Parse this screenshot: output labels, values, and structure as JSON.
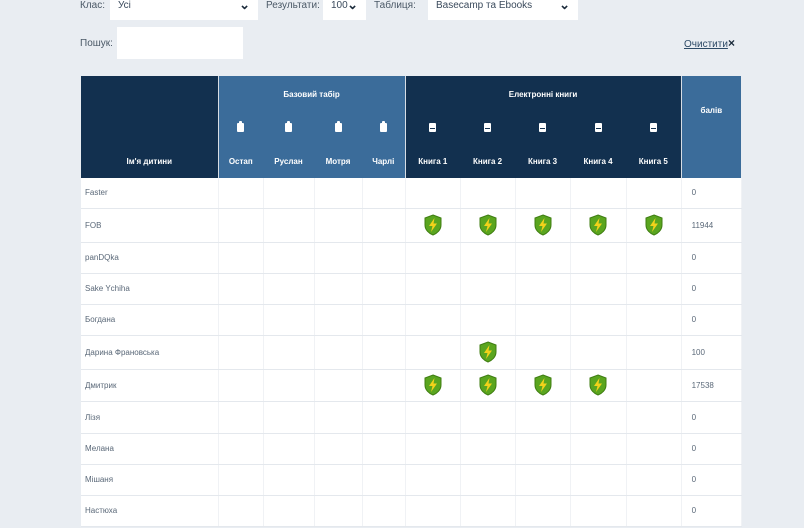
{
  "filters": {
    "class_label": "Клас:",
    "class_value": "Усі",
    "results_label": "Результати:",
    "results_value": "100",
    "table_label": "Таблиця:",
    "table_value": "Basecamp та Ebooks"
  },
  "search": {
    "label": "Пошук:",
    "value": "",
    "placeholder": "",
    "clear_label": "Очистити",
    "clear_icon": "×"
  },
  "table": {
    "group_basecamp": "Базовий табір",
    "group_ebooks": "Електронні книги",
    "score_header": "балів",
    "name_header": "Ім'я дитини",
    "basecamp_cols": [
      "Остап",
      "Руслан",
      "Мотря",
      "Чарлі"
    ],
    "ebook_cols": [
      "Книга 1",
      "Книга 2",
      "Книга 3",
      "Книга 4",
      "Книга 5"
    ],
    "badge_icon": "lightning-shield-icon",
    "badge_colors": {
      "shield": "#5aa51f",
      "bolt": "#f2d21a"
    },
    "rows": [
      {
        "name": "Faster",
        "basecamp": [
          0,
          0,
          0,
          0
        ],
        "ebooks": [
          0,
          0,
          0,
          0,
          0
        ],
        "score": "0"
      },
      {
        "name": "FOB",
        "basecamp": [
          0,
          0,
          0,
          0
        ],
        "ebooks": [
          1,
          1,
          1,
          1,
          1
        ],
        "score": "11944"
      },
      {
        "name": "panDQka",
        "basecamp": [
          0,
          0,
          0,
          0
        ],
        "ebooks": [
          0,
          0,
          0,
          0,
          0
        ],
        "score": "0"
      },
      {
        "name": "Sake Ychiha",
        "basecamp": [
          0,
          0,
          0,
          0
        ],
        "ebooks": [
          0,
          0,
          0,
          0,
          0
        ],
        "score": "0"
      },
      {
        "name": "Богдана",
        "basecamp": [
          0,
          0,
          0,
          0
        ],
        "ebooks": [
          0,
          0,
          0,
          0,
          0
        ],
        "score": "0"
      },
      {
        "name": "Дарина Франовська",
        "basecamp": [
          0,
          0,
          0,
          0
        ],
        "ebooks": [
          0,
          1,
          0,
          0,
          0
        ],
        "score": "100"
      },
      {
        "name": "Дмитрик",
        "basecamp": [
          0,
          0,
          0,
          0
        ],
        "ebooks": [
          1,
          1,
          1,
          1,
          0
        ],
        "score": "17538"
      },
      {
        "name": "Лізя",
        "basecamp": [
          0,
          0,
          0,
          0
        ],
        "ebooks": [
          0,
          0,
          0,
          0,
          0
        ],
        "score": "0"
      },
      {
        "name": "Мелана",
        "basecamp": [
          0,
          0,
          0,
          0
        ],
        "ebooks": [
          0,
          0,
          0,
          0,
          0
        ],
        "score": "0"
      },
      {
        "name": "Мішаня",
        "basecamp": [
          0,
          0,
          0,
          0
        ],
        "ebooks": [
          0,
          0,
          0,
          0,
          0
        ],
        "score": "0"
      },
      {
        "name": "Настюха",
        "basecamp": [
          0,
          0,
          0,
          0
        ],
        "ebooks": [
          0,
          0,
          0,
          0,
          0
        ],
        "score": "0"
      }
    ]
  }
}
